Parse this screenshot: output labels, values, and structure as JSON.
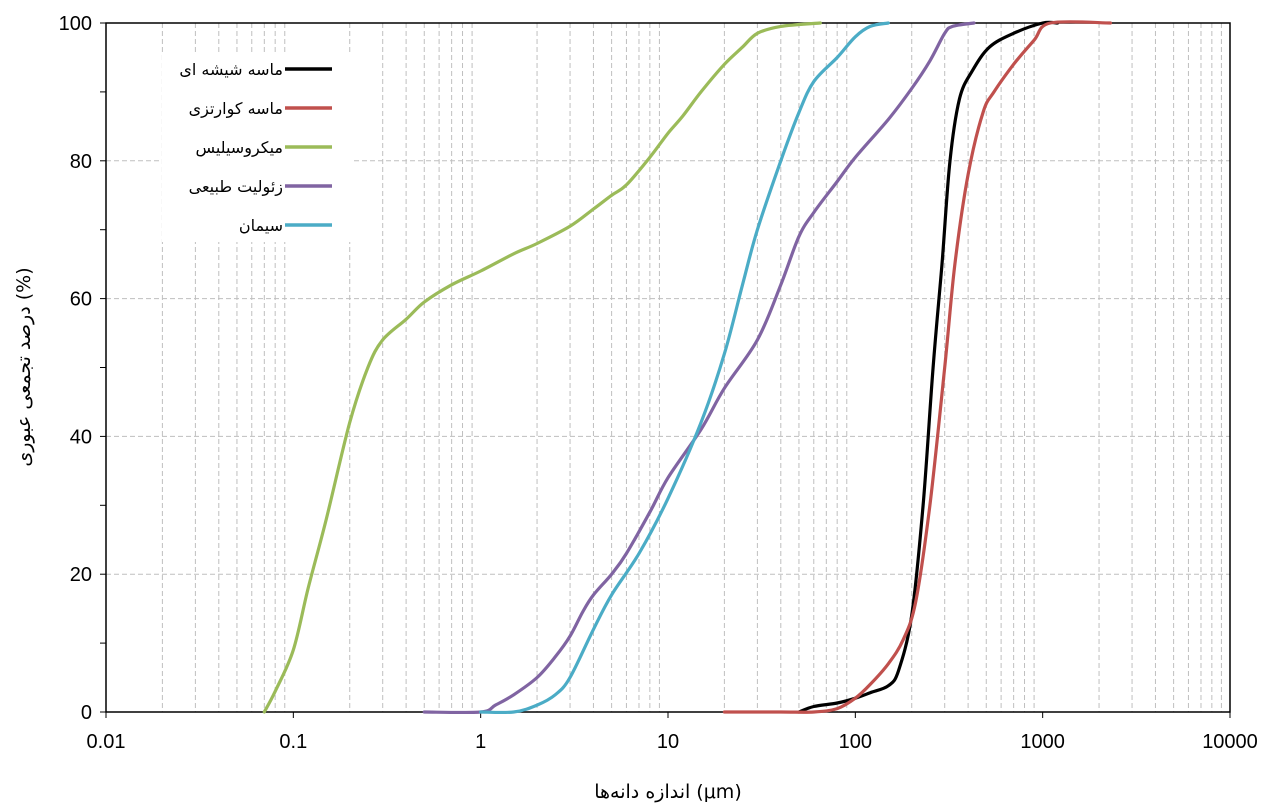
{
  "chart_data": {
    "type": "line",
    "title": "",
    "xlabel": "اندازه دانه‌ها (μm)",
    "ylabel": "درصد تجمعی عبوری (%)",
    "x_scale": "log",
    "xlim": [
      0.01,
      10000
    ],
    "ylim": [
      0,
      100
    ],
    "x_ticks": [
      "0.01",
      "0.1",
      "1",
      "10",
      "100",
      "1000",
      "10000"
    ],
    "y_ticks": [
      "0",
      "20",
      "40",
      "60",
      "80",
      "100"
    ],
    "grid": {
      "vertical_minor": true,
      "horizontal": true,
      "style": "dashed"
    },
    "legend_position": "top-left",
    "series": [
      {
        "name": "ماسه شیشه ای",
        "color": "#000000",
        "points": [
          [
            50,
            0
          ],
          [
            60,
            0.8
          ],
          [
            80,
            1.3
          ],
          [
            100,
            2
          ],
          [
            120,
            2.8
          ],
          [
            150,
            3.8
          ],
          [
            170,
            6
          ],
          [
            200,
            14
          ],
          [
            230,
            30
          ],
          [
            260,
            50
          ],
          [
            290,
            65
          ],
          [
            320,
            80
          ],
          [
            360,
            89
          ],
          [
            420,
            93
          ],
          [
            520,
            96.5
          ],
          [
            700,
            98.5
          ],
          [
            1000,
            100
          ],
          [
            1200,
            100
          ]
        ]
      },
      {
        "name": "ماسه کوارتزی",
        "color": "#c0504d",
        "points": [
          [
            20,
            0
          ],
          [
            40,
            0
          ],
          [
            60,
            0
          ],
          [
            80,
            0.5
          ],
          [
            100,
            2
          ],
          [
            120,
            4
          ],
          [
            150,
            7
          ],
          [
            180,
            10.5
          ],
          [
            210,
            16
          ],
          [
            250,
            30
          ],
          [
            300,
            50
          ],
          [
            340,
            65
          ],
          [
            400,
            78
          ],
          [
            480,
            87
          ],
          [
            550,
            90
          ],
          [
            700,
            94
          ],
          [
            900,
            97.5
          ],
          [
            1100,
            100
          ],
          [
            2300,
            100
          ]
        ]
      },
      {
        "name": "میکروسیلیس",
        "color": "#9bbb59",
        "points": [
          [
            0.07,
            0
          ],
          [
            0.08,
            3
          ],
          [
            0.1,
            9
          ],
          [
            0.12,
            18
          ],
          [
            0.15,
            28
          ],
          [
            0.2,
            42
          ],
          [
            0.25,
            50
          ],
          [
            0.3,
            54
          ],
          [
            0.4,
            57
          ],
          [
            0.5,
            59.5
          ],
          [
            0.7,
            62
          ],
          [
            1,
            64
          ],
          [
            1.5,
            66.5
          ],
          [
            2,
            68
          ],
          [
            3,
            70.5
          ],
          [
            4,
            73
          ],
          [
            5,
            75
          ],
          [
            6,
            76.5
          ],
          [
            8,
            80.5
          ],
          [
            10,
            84
          ],
          [
            12,
            86.5
          ],
          [
            15,
            90
          ],
          [
            20,
            94
          ],
          [
            25,
            96.5
          ],
          [
            30,
            98.5
          ],
          [
            40,
            99.5
          ],
          [
            65,
            100
          ]
        ]
      },
      {
        "name": "زئولیت طبیعی",
        "color": "#8064a2",
        "points": [
          [
            0.5,
            0
          ],
          [
            1,
            0
          ],
          [
            1.2,
            1
          ],
          [
            1.5,
            2.5
          ],
          [
            2,
            5
          ],
          [
            2.5,
            8
          ],
          [
            3,
            11
          ],
          [
            3.5,
            14.5
          ],
          [
            4,
            17
          ],
          [
            5,
            20
          ],
          [
            6,
            23
          ],
          [
            8,
            29
          ],
          [
            10,
            34
          ],
          [
            15,
            41
          ],
          [
            20,
            47
          ],
          [
            30,
            54
          ],
          [
            40,
            62
          ],
          [
            50,
            69
          ],
          [
            60,
            72.5
          ],
          [
            80,
            77
          ],
          [
            100,
            80.5
          ],
          [
            150,
            86
          ],
          [
            200,
            90.5
          ],
          [
            250,
            94.5
          ],
          [
            300,
            98.5
          ],
          [
            330,
            99.5
          ],
          [
            430,
            100
          ]
        ]
      },
      {
        "name": "سیمان",
        "color": "#4bacc6",
        "points": [
          [
            1,
            0
          ],
          [
            1.5,
            0
          ],
          [
            2,
            1
          ],
          [
            2.5,
            2.5
          ],
          [
            3,
            5
          ],
          [
            4,
            12
          ],
          [
            5,
            17
          ],
          [
            7,
            23
          ],
          [
            10,
            31
          ],
          [
            15,
            42
          ],
          [
            20,
            52
          ],
          [
            25,
            62
          ],
          [
            30,
            70
          ],
          [
            40,
            80
          ],
          [
            50,
            87
          ],
          [
            60,
            91.5
          ],
          [
            80,
            95
          ],
          [
            100,
            98
          ],
          [
            120,
            99.5
          ],
          [
            150,
            100
          ]
        ]
      }
    ]
  }
}
